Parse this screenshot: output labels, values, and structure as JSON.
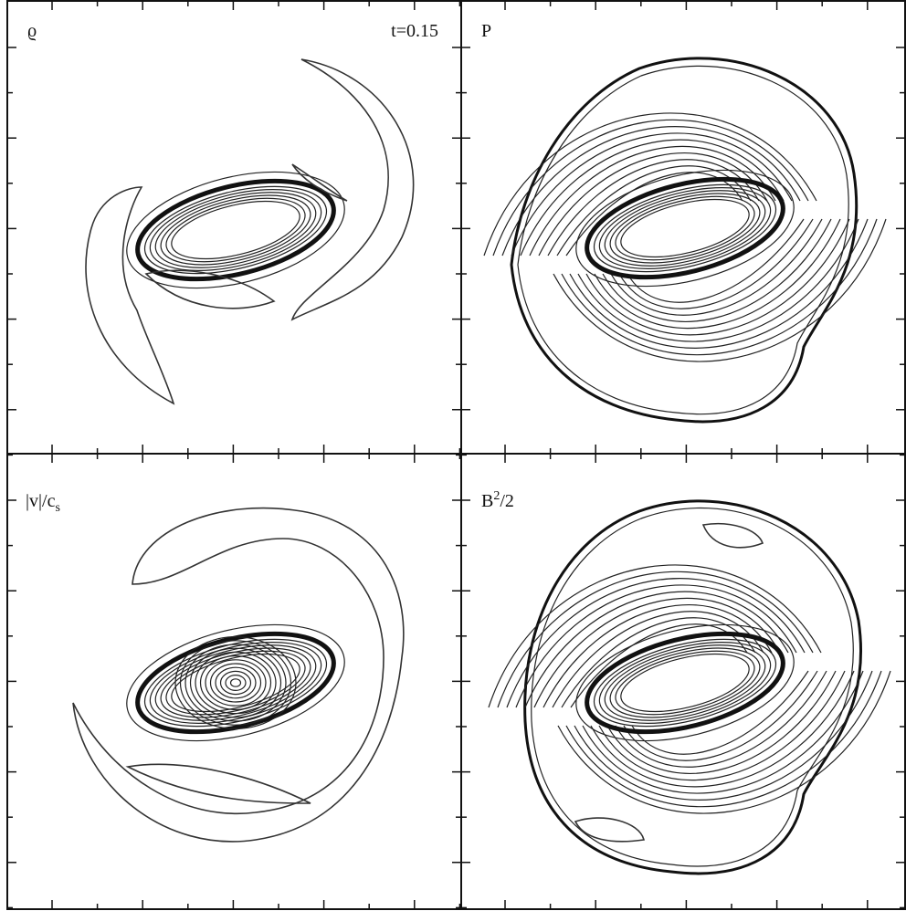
{
  "panels": [
    {
      "label": "ϱ",
      "time": "t=0.15"
    },
    {
      "label": "P"
    },
    {
      "label": "|v|/c",
      "subscript": "s"
    },
    {
      "label": "B",
      "superscript": "2",
      "suffix": "/2"
    }
  ]
}
